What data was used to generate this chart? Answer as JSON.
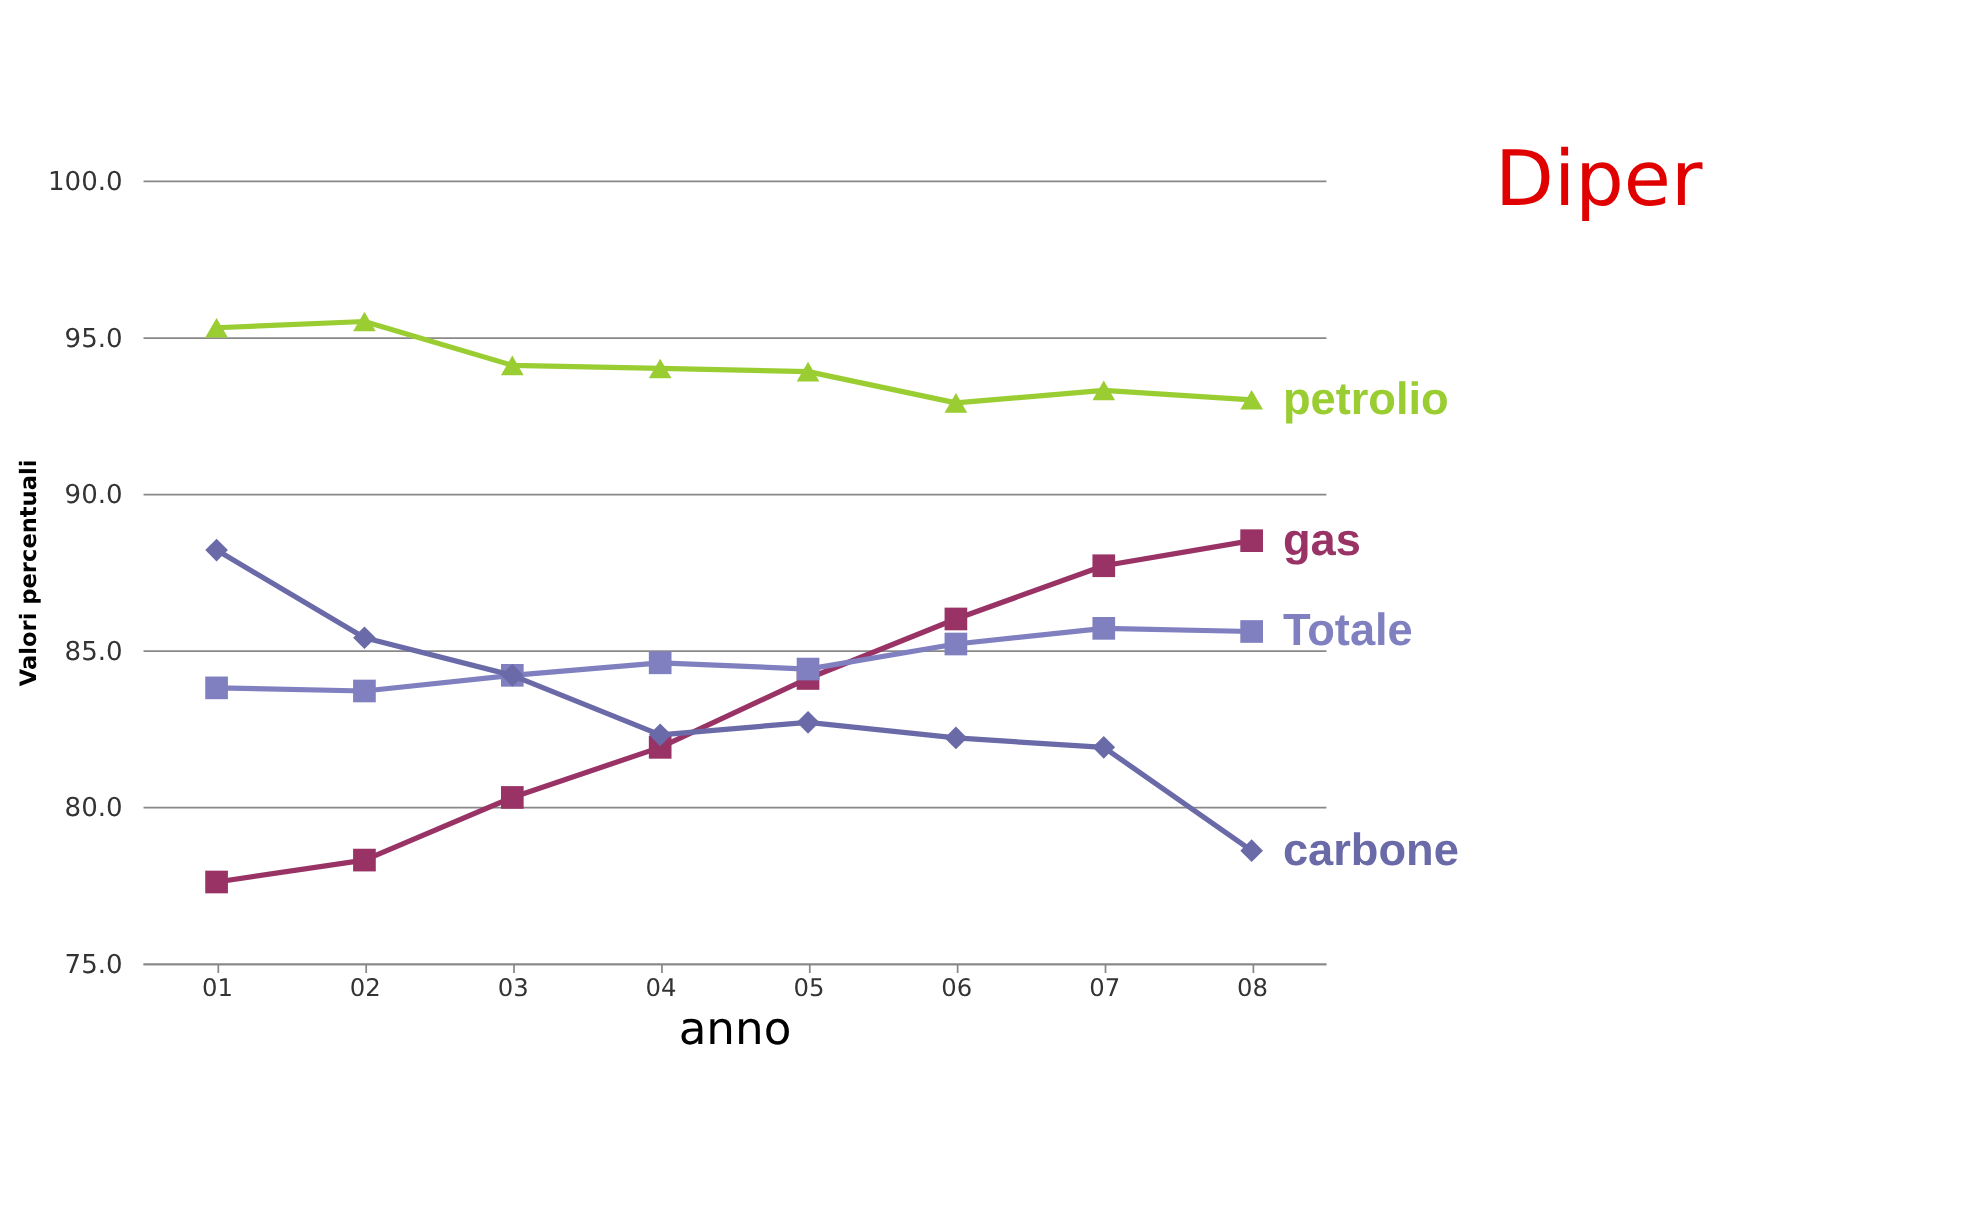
{
  "chart_data": {
    "type": "line",
    "title": "Diper",
    "xlabel": "anno",
    "ylabel": "Valori percentuali",
    "categories": [
      "01",
      "02",
      "03",
      "04",
      "05",
      "06",
      "07",
      "08"
    ],
    "ylim": [
      75,
      100
    ],
    "yticks": [
      {
        "value": 75,
        "label": "75.0"
      },
      {
        "value": 80,
        "label": "80.0"
      },
      {
        "value": 85,
        "label": "85.0"
      },
      {
        "value": 90,
        "label": "90.0"
      },
      {
        "value": 95,
        "label": "95.0"
      },
      {
        "value": 100,
        "label": "100.0"
      }
    ],
    "grid": "y",
    "legend": false,
    "series": [
      {
        "name": "petrolio",
        "color": "#9acd32",
        "marker": "triangle",
        "values": [
          95.3,
          95.5,
          94.1,
          94.0,
          93.9,
          92.9,
          93.3,
          93.0
        ]
      },
      {
        "name": "gas",
        "color": "#993366",
        "marker": "square",
        "values": [
          77.6,
          78.3,
          80.3,
          81.9,
          84.1,
          86.0,
          87.7,
          88.5
        ]
      },
      {
        "name": "Totale",
        "color": "#8080c0",
        "marker": "square",
        "values": [
          83.8,
          83.7,
          84.2,
          84.6,
          84.4,
          85.2,
          85.7,
          85.6
        ]
      },
      {
        "name": "carbone",
        "color": "#6a6aa8",
        "marker": "diamond",
        "values": [
          88.2,
          85.4,
          84.2,
          82.3,
          82.7,
          82.2,
          81.9,
          78.6
        ]
      }
    ]
  }
}
